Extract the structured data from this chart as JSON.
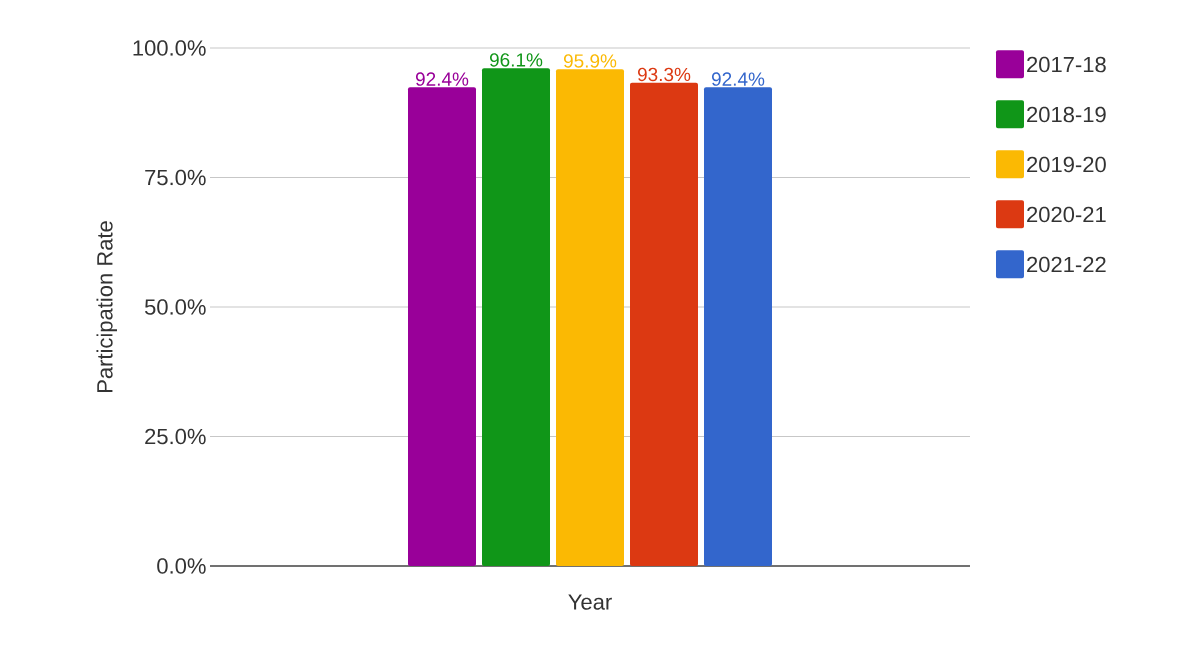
{
  "chart_data": {
    "type": "bar",
    "xlabel": "Year",
    "ylabel": "Participation Rate",
    "categories": [
      null
    ],
    "series": [
      {
        "name": "2017-18",
        "color": "#990099",
        "values": [
          92.4
        ],
        "value_labels": [
          "92.4%"
        ]
      },
      {
        "name": "2018-19",
        "color": "#109618",
        "values": [
          96.1
        ],
        "value_labels": [
          "96.1%"
        ]
      },
      {
        "name": "2019-20",
        "color": "#fbb903",
        "values": [
          95.9
        ],
        "value_labels": [
          "95.9%"
        ]
      },
      {
        "name": "2020-21",
        "color": "#dc3912",
        "values": [
          93.3
        ],
        "value_labels": [
          "93.3%"
        ]
      },
      {
        "name": "2021-22",
        "color": "#3366cc",
        "values": [
          92.4
        ],
        "value_labels": [
          "92.4%"
        ]
      }
    ],
    "ylim": [
      0,
      100
    ],
    "yticks": [
      {
        "value": 0,
        "label": "0.0%"
      },
      {
        "value": 25,
        "label": "25.0%"
      },
      {
        "value": 50,
        "label": "50.0%"
      },
      {
        "value": 75,
        "label": "75.0%"
      },
      {
        "value": 100,
        "label": "100.0%"
      }
    ],
    "grid": "y",
    "legend": "right"
  }
}
